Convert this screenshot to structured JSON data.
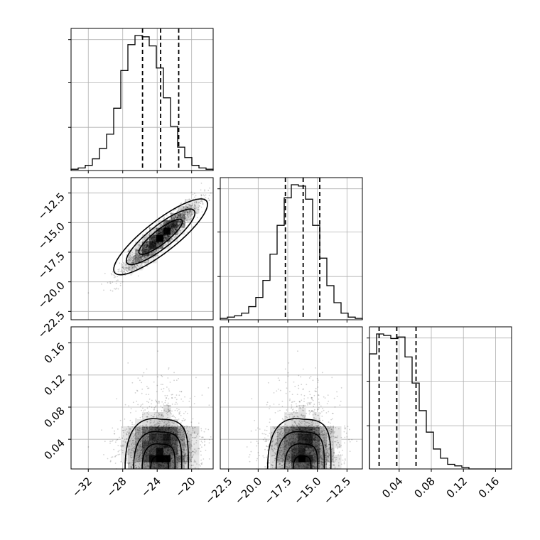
{
  "chart_data": {
    "type": "corner",
    "params": [
      {
        "range": [
          -34,
          -17.5
        ],
        "ticks": [
          -32,
          -28,
          -24,
          -20
        ],
        "tick_labels": [
          "−32",
          "−28",
          "−24",
          "−20"
        ],
        "quantiles": [
          -25.7,
          -23.6,
          -21.5
        ],
        "mean": -23.6,
        "sd": 2.0
      },
      {
        "range": [
          -23.2,
          -11.2
        ],
        "ticks": [
          -22.5,
          -20.0,
          -17.5,
          -15.0,
          -12.5
        ],
        "tick_labels": [
          "−22.5",
          "−20.0",
          "−17.5",
          "−15.0",
          "−12.5"
        ],
        "quantiles": [
          -17.7,
          -16.2,
          -14.8
        ],
        "mean": -16.2,
        "sd": 1.4
      },
      {
        "range": [
          0.003,
          0.18
        ],
        "ticks": [
          0.04,
          0.08,
          0.12,
          0.16
        ],
        "tick_labels": [
          "0.04",
          "0.08",
          "0.12",
          "0.16"
        ],
        "quantiles": [
          0.015,
          0.037,
          0.061
        ]
      }
    ],
    "histograms": [
      {
        "bins": 20,
        "counts": [
          1,
          2,
          4,
          9,
          17,
          28,
          48,
          77,
          97,
          104,
          103,
          96,
          79,
          56,
          34,
          18,
          10,
          4,
          2,
          1
        ]
      },
      {
        "bins": 20,
        "counts": [
          1,
          2,
          3,
          5,
          10,
          17,
          30,
          50,
          72,
          93,
          103,
          102,
          92,
          72,
          47,
          26,
          13,
          5,
          2,
          1
        ]
      },
      {
        "bins": 20,
        "counts": [
          75,
          88,
          87,
          85,
          86,
          73,
          56,
          38,
          24,
          13,
          7,
          3,
          2,
          1,
          0,
          0,
          0,
          0,
          0,
          0
        ]
      }
    ],
    "correlations": {
      "p0_p1": 0.93,
      "p0_p2": 0.0,
      "p1_p2": 0.0
    },
    "grid": true,
    "quantile_style": "dashed"
  }
}
